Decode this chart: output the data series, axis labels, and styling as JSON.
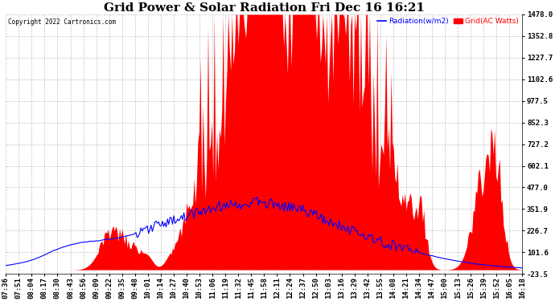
{
  "title": "Grid Power & Solar Radiation Fri Dec 16 16:21",
  "copyright": "Copyright 2022 Cartronics.com",
  "legend_radiation": "Radiation(w/m2)",
  "legend_grid": "Grid(AC Watts)",
  "radiation_color": "blue",
  "grid_color": "red",
  "background_color": "#ffffff",
  "yticks": [
    -23.5,
    101.6,
    226.7,
    351.9,
    477.0,
    602.1,
    727.2,
    852.3,
    977.5,
    1102.6,
    1227.7,
    1352.8,
    1478.0
  ],
  "ymin": -23.5,
  "ymax": 1478.0,
  "xtick_labels": [
    "07:36",
    "07:51",
    "08:04",
    "08:17",
    "08:30",
    "08:43",
    "08:56",
    "09:09",
    "09:22",
    "09:35",
    "09:48",
    "10:01",
    "10:14",
    "10:27",
    "10:40",
    "10:53",
    "11:06",
    "11:19",
    "11:32",
    "11:45",
    "11:58",
    "12:11",
    "12:24",
    "12:37",
    "12:50",
    "13:03",
    "13:16",
    "13:29",
    "13:42",
    "13:55",
    "14:08",
    "14:21",
    "14:34",
    "14:47",
    "15:00",
    "15:13",
    "15:26",
    "15:39",
    "15:52",
    "16:05",
    "16:18"
  ],
  "title_fontsize": 11,
  "tick_fontsize": 6.5
}
